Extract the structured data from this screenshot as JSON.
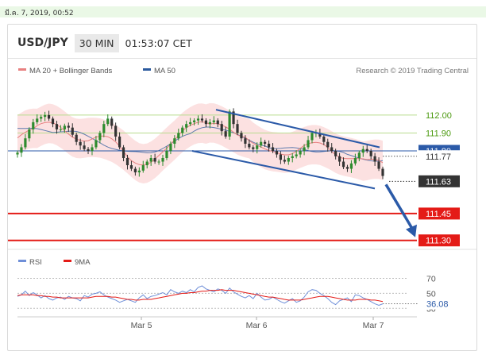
{
  "timestamp": "มี.ค. 7, 2019, 00:52",
  "header": {
    "pair": "USD/JPY",
    "timeframe": "30 MIN",
    "time": "01:53:07 CET"
  },
  "colors": {
    "ma20": "#e88080",
    "ma50": "#2b5a9e",
    "band_fill": "#fbdada",
    "up": "#2e8b2e",
    "down": "#333333",
    "support": "#e41b17",
    "resistance_line": "#b9dc8f",
    "resistance_label": "#4c9a10",
    "pivot": "#2b5aa8",
    "rsi": "#6f8fd8",
    "rsi_ma": "#e41b17",
    "arrow": "#2b5aa8",
    "price_box": "#333333"
  },
  "chart_data": [
    {
      "type": "line",
      "title": "",
      "legend": [
        {
          "name": "MA 20 + Bollinger Bands",
          "color": "#e88080"
        },
        {
          "name": "MA 50",
          "color": "#2b5a9e"
        }
      ],
      "credit": "Research © 2019 Trading Central",
      "x_labels": [
        "Mar 5",
        "Mar 6",
        "Mar 7"
      ],
      "ylim": [
        111.25,
        112.31
      ],
      "price_series": {
        "name": "USD/JPY",
        "values": [
          111.79,
          111.82,
          111.87,
          111.92,
          111.96,
          111.98,
          111.99,
          112.0,
          111.98,
          111.95,
          111.92,
          111.92,
          111.94,
          111.93,
          111.89,
          111.85,
          111.83,
          111.81,
          111.8,
          111.82,
          111.86,
          111.9,
          111.95,
          111.98,
          111.94,
          111.88,
          111.82,
          111.76,
          111.72,
          111.7,
          111.68,
          111.69,
          111.72,
          111.74,
          111.76,
          111.74,
          111.74,
          111.76,
          111.8,
          111.84,
          111.87,
          111.9,
          111.93,
          111.95,
          111.96,
          111.97,
          111.98,
          111.97,
          111.95,
          111.96,
          111.97,
          111.95,
          111.91,
          111.88,
          112.02,
          111.95,
          111.9,
          111.87,
          111.84,
          111.82,
          111.81,
          111.83,
          111.85,
          111.84,
          111.82,
          111.8,
          111.78,
          111.75,
          111.74,
          111.76,
          111.77,
          111.78,
          111.8,
          111.82,
          111.86,
          111.9,
          111.9,
          111.88,
          111.85,
          111.82,
          111.8,
          111.77,
          111.74,
          111.71,
          111.7,
          111.73,
          111.76,
          111.79,
          111.81,
          111.8,
          111.77,
          111.74,
          111.7,
          111.66
        ]
      },
      "overlays": {
        "bollinger_upper": 112.06,
        "bollinger_lower": 111.66,
        "ma20_last": 111.74,
        "ma50_last": 111.79
      },
      "channel": {
        "upper_line": [
          112.03,
          111.82
        ],
        "lower_line": [
          111.8,
          111.59
        ]
      },
      "levels": [
        {
          "value": 112.0,
          "label": "112.00",
          "kind": "resistance"
        },
        {
          "value": 111.9,
          "label": "111.90",
          "kind": "resistance"
        },
        {
          "value": 111.8,
          "label": "111.80",
          "kind": "pivot"
        },
        {
          "value": 111.77,
          "label": "111.77",
          "kind": "last-close"
        },
        {
          "value": 111.63,
          "label": "111.63",
          "kind": "current"
        },
        {
          "value": 111.45,
          "label": "111.45",
          "kind": "support"
        },
        {
          "value": 111.3,
          "label": "111.30",
          "kind": "support"
        }
      ],
      "forecast_arrow": {
        "from": 111.63,
        "to": 111.3
      }
    },
    {
      "type": "line",
      "title": "",
      "legend": [
        {
          "name": "RSI",
          "color": "#6f8fd8"
        },
        {
          "name": "9MA",
          "color": "#e41b17"
        }
      ],
      "ylim": [
        25,
        78
      ],
      "y_ticks": [
        "70",
        "50",
        "30"
      ],
      "current_label": "36.08",
      "series": [
        {
          "name": "RSI",
          "values": [
            46,
            48,
            53,
            47,
            51,
            48,
            44,
            47,
            43,
            41,
            44,
            45,
            42,
            46,
            44,
            43,
            40,
            47,
            45,
            49,
            50,
            52,
            48,
            45,
            43,
            41,
            38,
            40,
            42,
            40,
            38,
            44,
            48,
            43,
            46,
            47,
            49,
            51,
            48,
            55,
            52,
            50,
            53,
            51,
            55,
            52,
            58,
            60,
            56,
            54,
            52,
            56,
            54,
            50,
            57,
            52,
            49,
            46,
            44,
            47,
            43,
            50,
            45,
            41,
            42,
            45,
            42,
            39,
            37,
            40,
            43,
            38,
            40,
            45,
            52,
            55,
            54,
            50,
            47,
            43,
            38,
            35,
            40,
            42,
            44,
            39,
            48,
            47,
            44,
            42,
            39,
            36,
            34,
            36
          ]
        },
        {
          "name": "9MA",
          "values": [
            47,
            48,
            48,
            48,
            48,
            47,
            47,
            46,
            46,
            45,
            45,
            44,
            44,
            44,
            44,
            44,
            44,
            44,
            44,
            45,
            46,
            46,
            46,
            46,
            45,
            45,
            44,
            43,
            42,
            42,
            41,
            41,
            42,
            42,
            42,
            43,
            44,
            45,
            46,
            47,
            48,
            49,
            50,
            50,
            51,
            51,
            52,
            53,
            53,
            54,
            54,
            54,
            55,
            54,
            54,
            54,
            53,
            52,
            51,
            50,
            49,
            48,
            47,
            46,
            45,
            45,
            44,
            43,
            42,
            41,
            41,
            41,
            41,
            42,
            43,
            44,
            45,
            46,
            46,
            46,
            45,
            44,
            43,
            42,
            41,
            41,
            41,
            42,
            42,
            42,
            41,
            41,
            40,
            39
          ]
        }
      ]
    }
  ]
}
